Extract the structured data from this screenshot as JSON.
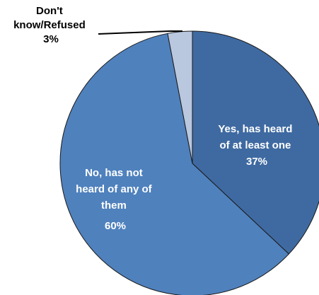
{
  "chart_data": {
    "type": "pie",
    "slices": [
      {
        "label_lines": [
          "Yes, has heard",
          "of at least one"
        ],
        "value": 37,
        "value_label": "37%",
        "color": "#3f6aa1"
      },
      {
        "label_lines": [
          "No, has not",
          "heard of any of",
          "them"
        ],
        "value": 60,
        "value_label": "60%",
        "color": "#4f81bd"
      },
      {
        "label_lines": [
          "Don't",
          "know/Refused"
        ],
        "value": 3,
        "value_label": "3%",
        "color": "#b9c7df"
      }
    ],
    "start_angle": "12 o'clock",
    "direction": "clockwise",
    "legend": "none"
  }
}
